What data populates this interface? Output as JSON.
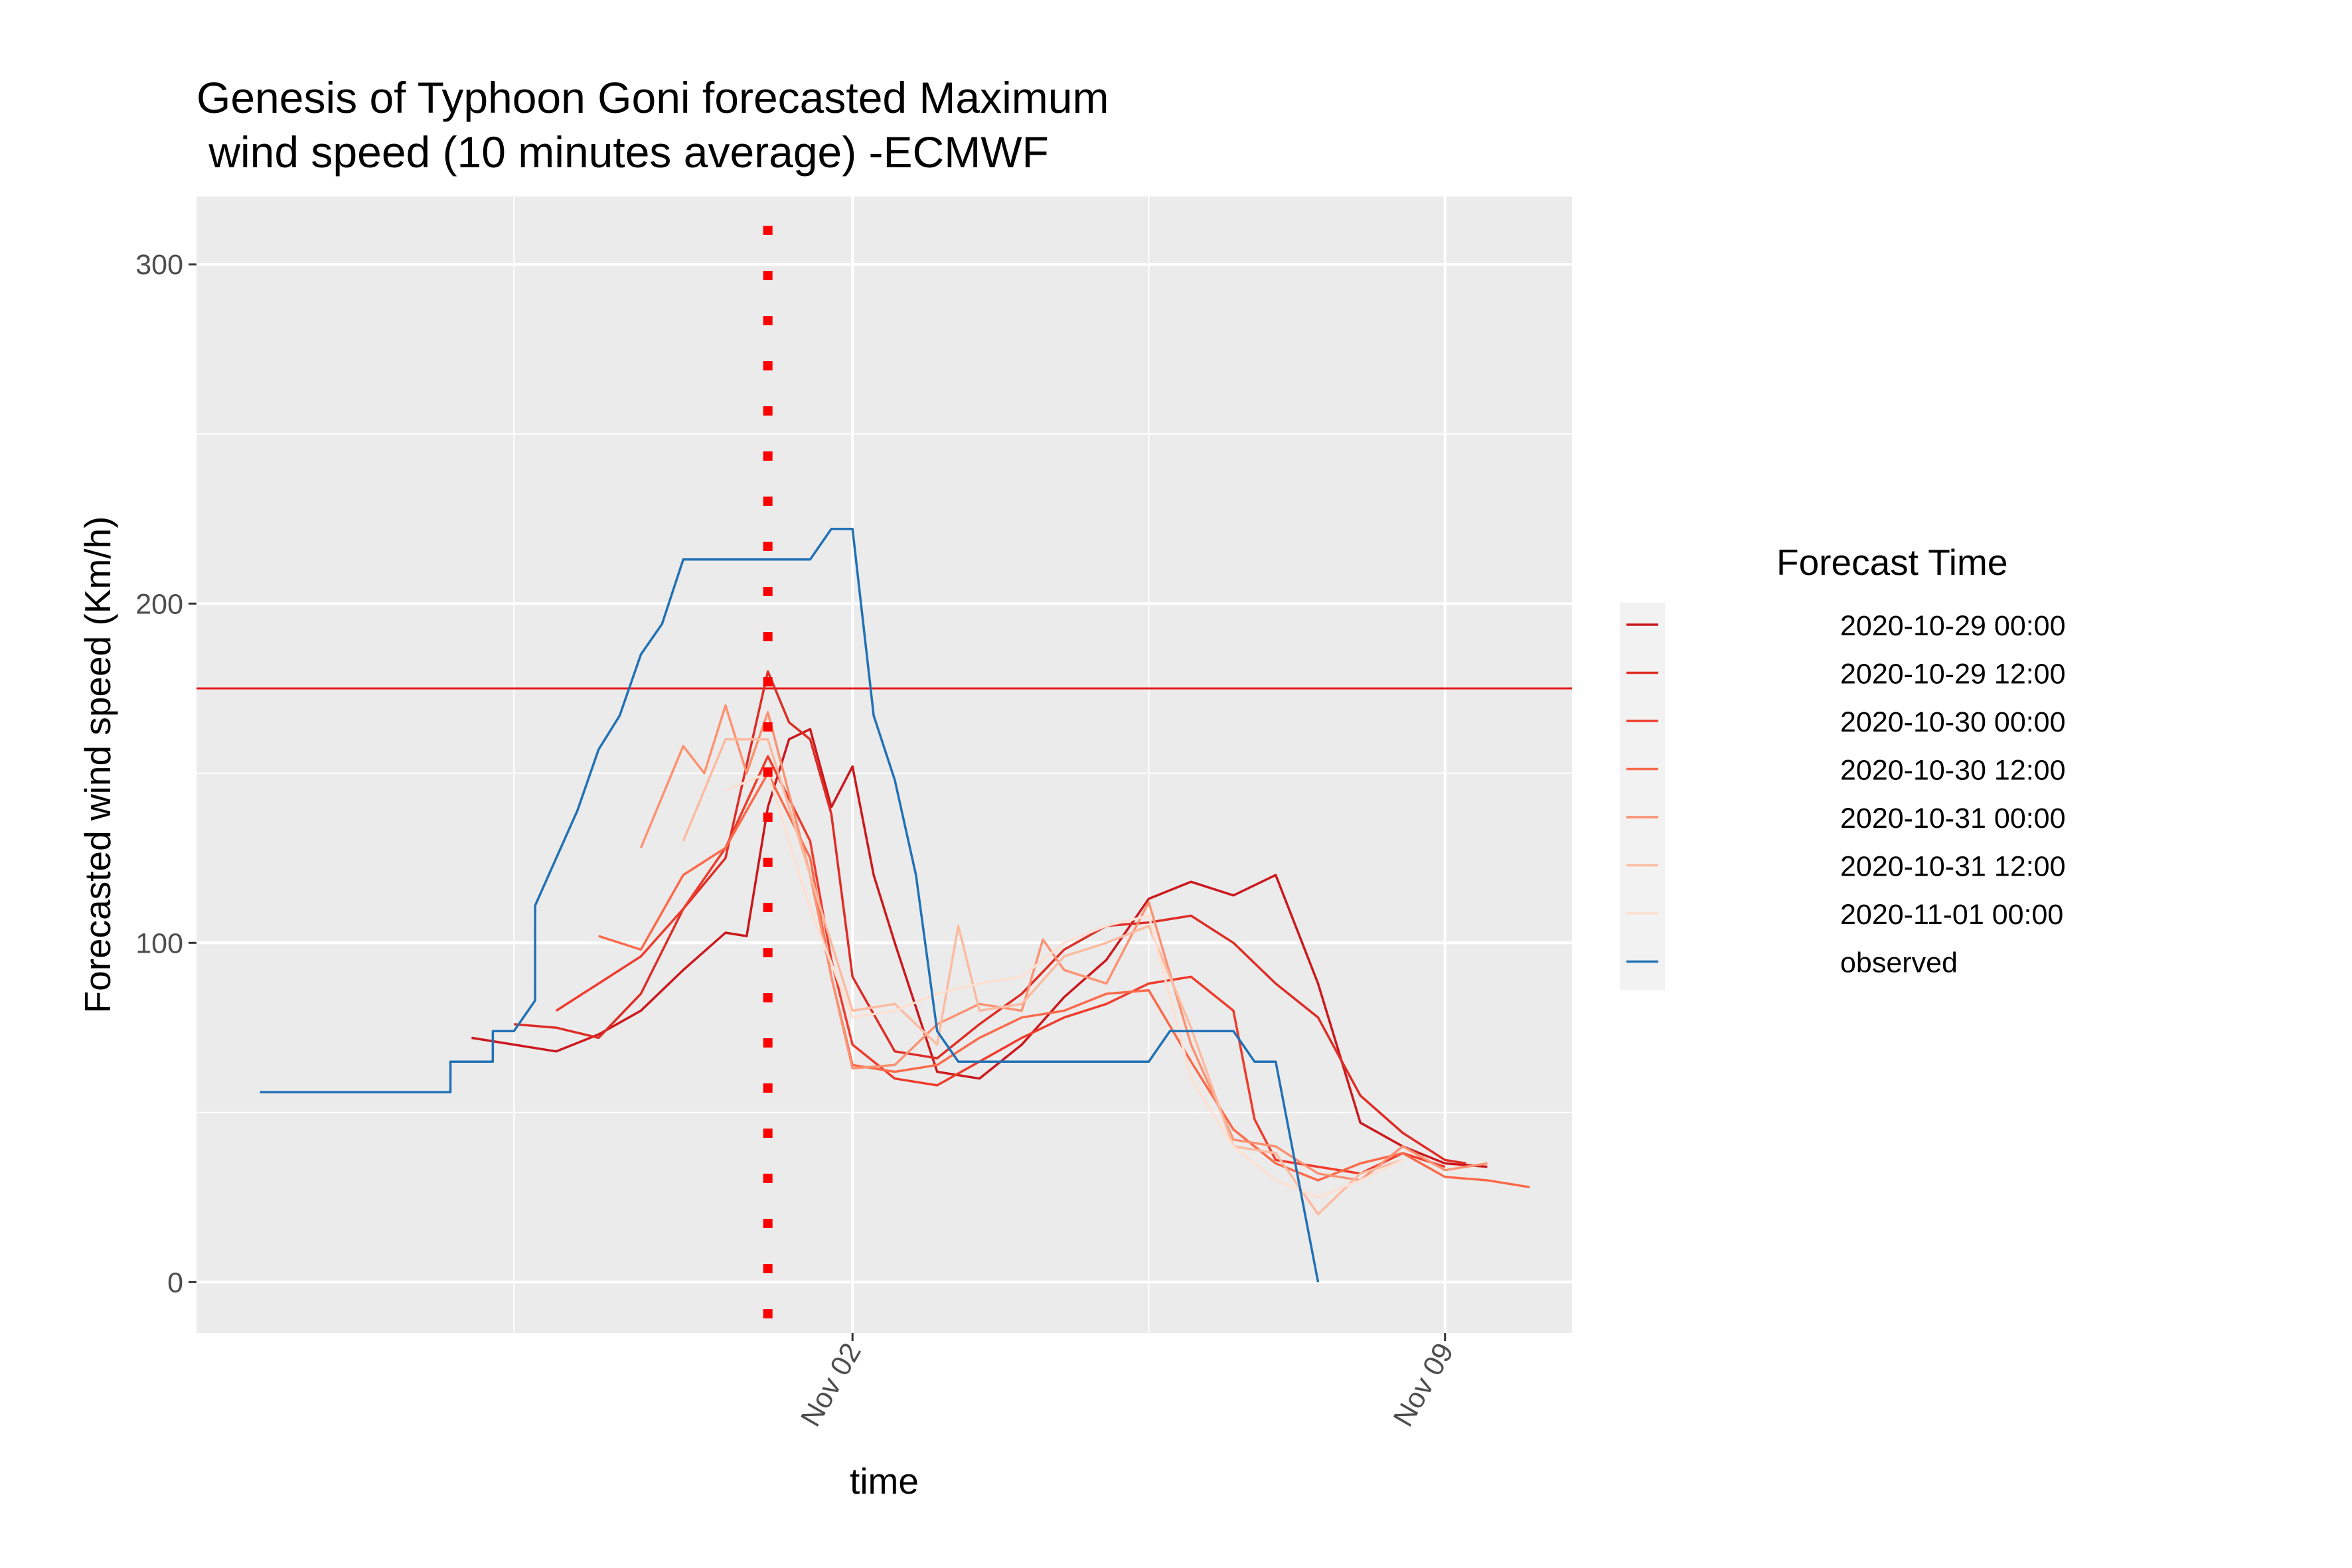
{
  "chart_data": {
    "type": "line",
    "title_line1": "Genesis of Typhoon Goni forecasted Maximum",
    "title_line2": " wind speed (10 minutes average) -ECMWF",
    "xlabel": "time",
    "ylabel": "Forecasted wind speed (Km/h)",
    "x_range": [
      "2020-10-25T06:00",
      "2020-11-10T12:00"
    ],
    "x_ticks": [
      {
        "date": "2020-11-02T00:00",
        "label": "Nov 02"
      },
      {
        "date": "2020-11-09T00:00",
        "label": "Nov 09"
      }
    ],
    "x_minor_grid": [
      "2020-10-29T00:00",
      "2020-11-05T12:00"
    ],
    "ylim": [
      -15,
      320
    ],
    "y_ticks": [
      0,
      100,
      200,
      300
    ],
    "y_minor_grid": [
      50,
      150,
      250
    ],
    "grid": true,
    "reference_lines": {
      "horizontal": {
        "y": 175,
        "color": "#e41a1c"
      },
      "vertical": {
        "x": "2020-11-01T00:00",
        "color": "#ff0000",
        "style": "dotted"
      }
    },
    "legend": {
      "title": "Forecast Time",
      "position": "right"
    },
    "series": [
      {
        "name": "2020-10-29  00:00",
        "color": "#cb181d",
        "points": [
          [
            "2020-10-28T12:00",
            72
          ],
          [
            "2020-10-29T00:00",
            70
          ],
          [
            "2020-10-29T12:00",
            68
          ],
          [
            "2020-10-30T00:00",
            73
          ],
          [
            "2020-10-30T12:00",
            80
          ],
          [
            "2020-10-31T00:00",
            92
          ],
          [
            "2020-10-31T12:00",
            103
          ],
          [
            "2020-10-31T18:00",
            102
          ],
          [
            "2020-11-01T00:00",
            140
          ],
          [
            "2020-11-01T06:00",
            160
          ],
          [
            "2020-11-01T12:00",
            163
          ],
          [
            "2020-11-01T18:00",
            140
          ],
          [
            "2020-11-02T00:00",
            152
          ],
          [
            "2020-11-02T06:00",
            120
          ],
          [
            "2020-11-02T12:00",
            100
          ],
          [
            "2020-11-03T00:00",
            62
          ],
          [
            "2020-11-03T12:00",
            60
          ],
          [
            "2020-11-04T00:00",
            70
          ],
          [
            "2020-11-04T12:00",
            84
          ],
          [
            "2020-11-05T00:00",
            95
          ],
          [
            "2020-11-05T12:00",
            113
          ],
          [
            "2020-11-06T00:00",
            118
          ],
          [
            "2020-11-06T12:00",
            114
          ],
          [
            "2020-11-07T00:00",
            120
          ],
          [
            "2020-11-07T12:00",
            88
          ],
          [
            "2020-11-08T00:00",
            47
          ],
          [
            "2020-11-08T12:00",
            40
          ],
          [
            "2020-11-09T00:00",
            35
          ],
          [
            "2020-11-09T12:00",
            34
          ]
        ]
      },
      {
        "name": "2020-10-29  12:00",
        "color": "#de2d26",
        "points": [
          [
            "2020-10-29T00:00",
            76
          ],
          [
            "2020-10-29T12:00",
            75
          ],
          [
            "2020-10-30T00:00",
            72
          ],
          [
            "2020-10-30T12:00",
            85
          ],
          [
            "2020-10-31T00:00",
            110
          ],
          [
            "2020-10-31T12:00",
            125
          ],
          [
            "2020-11-01T00:00",
            180
          ],
          [
            "2020-11-01T06:00",
            165
          ],
          [
            "2020-11-01T12:00",
            160
          ],
          [
            "2020-11-01T18:00",
            138
          ],
          [
            "2020-11-02T00:00",
            90
          ],
          [
            "2020-11-02T12:00",
            68
          ],
          [
            "2020-11-03T00:00",
            66
          ],
          [
            "2020-11-03T12:00",
            76
          ],
          [
            "2020-11-04T00:00",
            85
          ],
          [
            "2020-11-04T12:00",
            98
          ],
          [
            "2020-11-05T00:00",
            105
          ],
          [
            "2020-11-05T12:00",
            106
          ],
          [
            "2020-11-06T00:00",
            108
          ],
          [
            "2020-11-06T12:00",
            100
          ],
          [
            "2020-11-07T00:00",
            88
          ],
          [
            "2020-11-07T12:00",
            78
          ],
          [
            "2020-11-08T00:00",
            55
          ],
          [
            "2020-11-08T12:00",
            44
          ],
          [
            "2020-11-09T00:00",
            36
          ],
          [
            "2020-11-09T06:00",
            35
          ]
        ]
      },
      {
        "name": "2020-10-30  00:00",
        "color": "#ef3b2c",
        "points": [
          [
            "2020-10-29T12:00",
            80
          ],
          [
            "2020-10-30T00:00",
            88
          ],
          [
            "2020-10-30T12:00",
            96
          ],
          [
            "2020-10-31T00:00",
            110
          ],
          [
            "2020-10-31T12:00",
            128
          ],
          [
            "2020-11-01T00:00",
            155
          ],
          [
            "2020-11-01T12:00",
            130
          ],
          [
            "2020-11-01T18:00",
            95
          ],
          [
            "2020-11-02T00:00",
            70
          ],
          [
            "2020-11-02T12:00",
            60
          ],
          [
            "2020-11-03T00:00",
            58
          ],
          [
            "2020-11-03T12:00",
            65
          ],
          [
            "2020-11-04T00:00",
            72
          ],
          [
            "2020-11-04T12:00",
            78
          ],
          [
            "2020-11-05T00:00",
            82
          ],
          [
            "2020-11-05T12:00",
            88
          ],
          [
            "2020-11-06T00:00",
            90
          ],
          [
            "2020-11-06T12:00",
            80
          ],
          [
            "2020-11-06T18:00",
            48
          ],
          [
            "2020-11-07T00:00",
            36
          ],
          [
            "2020-11-07T12:00",
            34
          ],
          [
            "2020-11-08T00:00",
            32
          ],
          [
            "2020-11-08T12:00",
            38
          ],
          [
            "2020-11-09T00:00",
            34
          ]
        ]
      },
      {
        "name": "2020-10-30  12:00",
        "color": "#fb6a4a",
        "points": [
          [
            "2020-10-30T00:00",
            102
          ],
          [
            "2020-10-30T12:00",
            98
          ],
          [
            "2020-10-31T00:00",
            120
          ],
          [
            "2020-10-31T12:00",
            128
          ],
          [
            "2020-11-01T00:00",
            150
          ],
          [
            "2020-11-01T12:00",
            125
          ],
          [
            "2020-11-01T18:00",
            90
          ],
          [
            "2020-11-02T00:00",
            64
          ],
          [
            "2020-11-02T12:00",
            62
          ],
          [
            "2020-11-03T00:00",
            64
          ],
          [
            "2020-11-03T12:00",
            72
          ],
          [
            "2020-11-04T00:00",
            78
          ],
          [
            "2020-11-04T12:00",
            80
          ],
          [
            "2020-11-05T00:00",
            85
          ],
          [
            "2020-11-05T12:00",
            86
          ],
          [
            "2020-11-06T00:00",
            65
          ],
          [
            "2020-11-06T12:00",
            45
          ],
          [
            "2020-11-07T00:00",
            35
          ],
          [
            "2020-11-07T12:00",
            30
          ],
          [
            "2020-11-08T00:00",
            35
          ],
          [
            "2020-11-08T12:00",
            38
          ],
          [
            "2020-11-09T00:00",
            31
          ],
          [
            "2020-11-09T12:00",
            30
          ],
          [
            "2020-11-10T00:00",
            28
          ]
        ]
      },
      {
        "name": "2020-10-31  00:00",
        "color": "#fc9272",
        "points": [
          [
            "2020-10-30T12:00",
            128
          ],
          [
            "2020-10-31T00:00",
            158
          ],
          [
            "2020-10-31T06:00",
            150
          ],
          [
            "2020-10-31T12:00",
            170
          ],
          [
            "2020-10-31T18:00",
            150
          ],
          [
            "2020-11-01T00:00",
            168
          ],
          [
            "2020-11-01T12:00",
            120
          ],
          [
            "2020-11-01T18:00",
            90
          ],
          [
            "2020-11-02T00:00",
            63
          ],
          [
            "2020-11-02T12:00",
            64
          ],
          [
            "2020-11-03T00:00",
            76
          ],
          [
            "2020-11-03T12:00",
            82
          ],
          [
            "2020-11-04T00:00",
            80
          ],
          [
            "2020-11-04T06:00",
            101
          ],
          [
            "2020-11-04T12:00",
            92
          ],
          [
            "2020-11-05T00:00",
            88
          ],
          [
            "2020-11-05T12:00",
            112
          ],
          [
            "2020-11-06T00:00",
            70
          ],
          [
            "2020-11-06T12:00",
            42
          ],
          [
            "2020-11-07T00:00",
            40
          ],
          [
            "2020-11-07T12:00",
            32
          ],
          [
            "2020-11-08T00:00",
            30
          ],
          [
            "2020-11-08T12:00",
            40
          ],
          [
            "2020-11-09T00:00",
            33
          ],
          [
            "2020-11-09T12:00",
            35
          ]
        ]
      },
      {
        "name": "2020-10-31  12:00",
        "color": "#fcbba1",
        "points": [
          [
            "2020-10-31T00:00",
            130
          ],
          [
            "2020-10-31T12:00",
            160
          ],
          [
            "2020-11-01T00:00",
            160
          ],
          [
            "2020-11-01T12:00",
            120
          ],
          [
            "2020-11-02T00:00",
            80
          ],
          [
            "2020-11-02T12:00",
            82
          ],
          [
            "2020-11-03T00:00",
            70
          ],
          [
            "2020-11-03T06:00",
            105
          ],
          [
            "2020-11-03T12:00",
            80
          ],
          [
            "2020-11-04T00:00",
            82
          ],
          [
            "2020-11-04T12:00",
            96
          ],
          [
            "2020-11-05T00:00",
            100
          ],
          [
            "2020-11-05T12:00",
            105
          ],
          [
            "2020-11-06T00:00",
            75
          ],
          [
            "2020-11-06T12:00",
            40
          ],
          [
            "2020-11-07T00:00",
            38
          ],
          [
            "2020-11-07T12:00",
            20
          ],
          [
            "2020-11-08T00:00",
            32
          ],
          [
            "2020-11-08T12:00",
            36
          ]
        ]
      },
      {
        "name": "2020-11-01  00:00",
        "color": "#fee0d2",
        "points": [
          [
            "2020-10-31T12:00",
            145
          ],
          [
            "2020-11-01T00:00",
            150
          ],
          [
            "2020-11-01T12:00",
            110
          ],
          [
            "2020-11-02T00:00",
            78
          ],
          [
            "2020-11-02T12:00",
            80
          ],
          [
            "2020-11-03T00:00",
            85
          ],
          [
            "2020-11-03T12:00",
            88
          ],
          [
            "2020-11-04T00:00",
            90
          ],
          [
            "2020-11-04T12:00",
            100
          ],
          [
            "2020-11-05T00:00",
            105
          ],
          [
            "2020-11-05T12:00",
            108
          ],
          [
            "2020-11-06T00:00",
            60
          ],
          [
            "2020-11-06T12:00",
            40
          ],
          [
            "2020-11-07T00:00",
            30
          ],
          [
            "2020-11-07T12:00",
            25
          ],
          [
            "2020-11-08T00:00",
            30
          ],
          [
            "2020-11-08T12:00",
            36
          ]
        ]
      },
      {
        "name": "observed",
        "color": "#2171b5",
        "points": [
          [
            "2020-10-26T00:00",
            56
          ],
          [
            "2020-10-28T06:00",
            56
          ],
          [
            "2020-10-28T06:01",
            65
          ],
          [
            "2020-10-28T18:00",
            65
          ],
          [
            "2020-10-28T18:01",
            74
          ],
          [
            "2020-10-29T00:00",
            74
          ],
          [
            "2020-10-29T06:00",
            83
          ],
          [
            "2020-10-29T06:01",
            111
          ],
          [
            "2020-10-29T18:00",
            139
          ],
          [
            "2020-10-30T00:00",
            157
          ],
          [
            "2020-10-30T06:00",
            167
          ],
          [
            "2020-10-30T12:00",
            185
          ],
          [
            "2020-10-30T18:00",
            194
          ],
          [
            "2020-10-31T00:00",
            213
          ],
          [
            "2020-11-01T12:00",
            213
          ],
          [
            "2020-11-01T18:00",
            222
          ],
          [
            "2020-11-02T00:00",
            222
          ],
          [
            "2020-11-02T06:00",
            167
          ],
          [
            "2020-11-02T12:00",
            148
          ],
          [
            "2020-11-02T18:00",
            120
          ],
          [
            "2020-11-03T00:00",
            74
          ],
          [
            "2020-11-03T06:00",
            65
          ],
          [
            "2020-11-04T06:00",
            65
          ],
          [
            "2020-11-05T12:00",
            65
          ],
          [
            "2020-11-05T18:00",
            74
          ],
          [
            "2020-11-06T12:00",
            74
          ],
          [
            "2020-11-06T18:00",
            65
          ],
          [
            "2020-11-07T00:00",
            65
          ],
          [
            "2020-11-07T12:00",
            0
          ]
        ]
      }
    ]
  }
}
